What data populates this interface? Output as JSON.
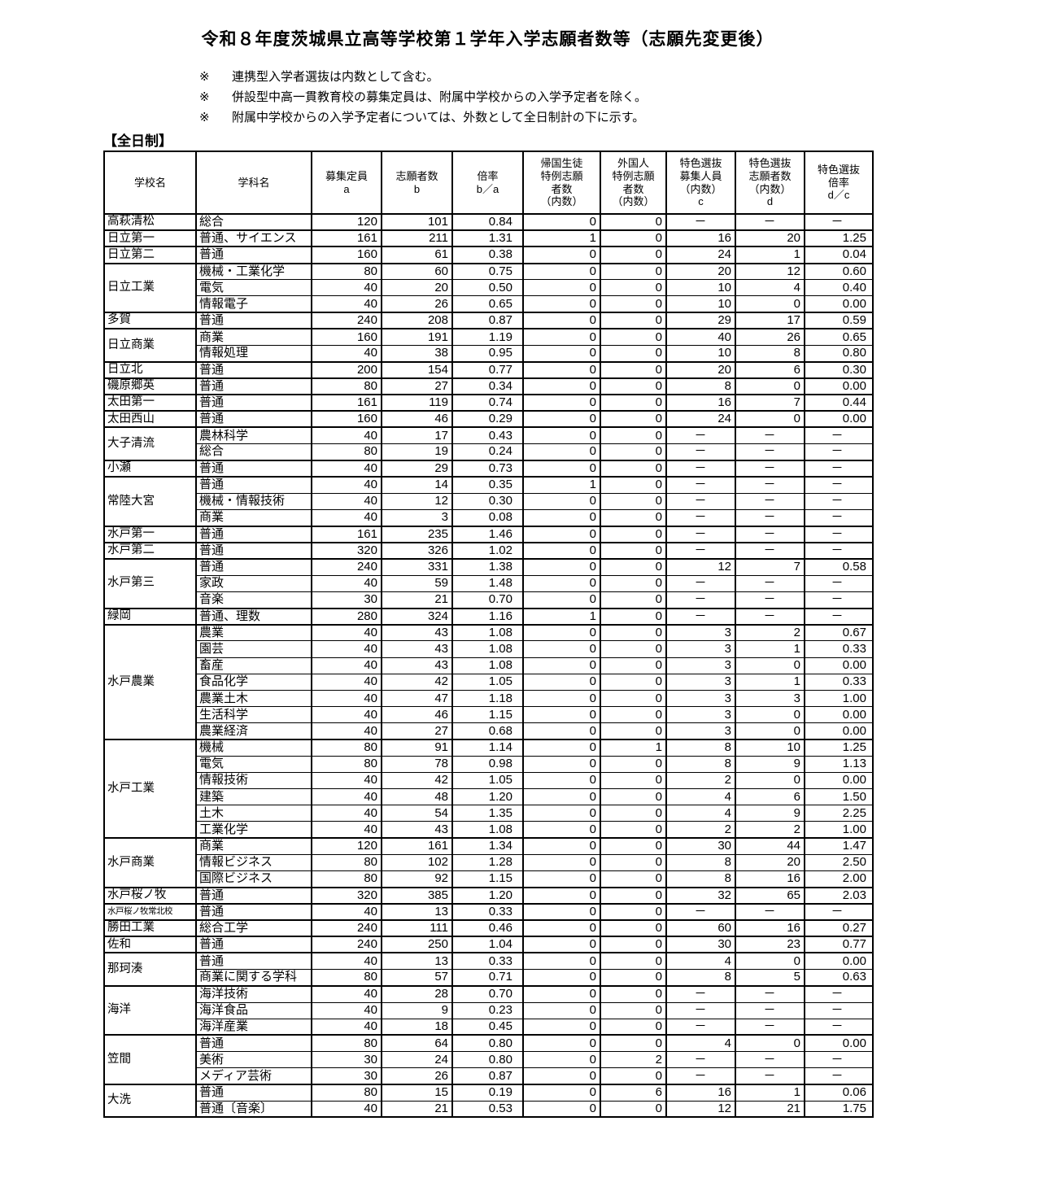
{
  "page": {
    "title": "令和８年度茨城県立高等学校第１学年入学志願者数等（志願先変更後）",
    "notes": [
      {
        "marker": "※",
        "text": "連携型入学者選抜は内数として含む。"
      },
      {
        "marker": "※",
        "text": "併設型中高一貫教育校の募集定員は、附属中学校からの入学予定者を除く。"
      },
      {
        "marker": "※",
        "text": "附属中学校からの入学予定者については、外数として全日制計の下に示す。"
      }
    ],
    "section_label": "【全日制】"
  },
  "colors": {
    "background": "#ffffff",
    "text": "#000000",
    "border": "#000000"
  },
  "table": {
    "headers": [
      {
        "label": "学校名"
      },
      {
        "label": "学科名"
      },
      {
        "label": "募集定員\na"
      },
      {
        "label": "志願者数\nb"
      },
      {
        "label": "倍率\nb／a"
      },
      {
        "label": "帰国生徒\n特例志願\n者数\n（内数）"
      },
      {
        "label": "外国人\n特例志願\n者数\n（内数）"
      },
      {
        "label": "特色選抜\n募集人員\n（内数）\nc"
      },
      {
        "label": "特色選抜\n志願者数\n（内数）\nd"
      },
      {
        "label": "特色選抜\n倍率\nd／c"
      }
    ],
    "schools": [
      {
        "name": "高萩清松",
        "rows": [
          [
            "総合",
            "120",
            "101",
            "0.84",
            "0",
            "0",
            "－",
            "－",
            "－"
          ]
        ]
      },
      {
        "name": "日立第一",
        "rows": [
          [
            "普通、サイエンス",
            "161",
            "211",
            "1.31",
            "1",
            "0",
            "16",
            "20",
            "1.25"
          ]
        ]
      },
      {
        "name": "日立第二",
        "rows": [
          [
            "普通",
            "160",
            "61",
            "0.38",
            "0",
            "0",
            "24",
            "1",
            "0.04"
          ]
        ]
      },
      {
        "name": "日立工業",
        "rows": [
          [
            "機械・工業化学",
            "80",
            "60",
            "0.75",
            "0",
            "0",
            "20",
            "12",
            "0.60"
          ],
          [
            "電気",
            "40",
            "20",
            "0.50",
            "0",
            "0",
            "10",
            "4",
            "0.40"
          ],
          [
            "情報電子",
            "40",
            "26",
            "0.65",
            "0",
            "0",
            "10",
            "0",
            "0.00"
          ]
        ]
      },
      {
        "name": "多賀",
        "rows": [
          [
            "普通",
            "240",
            "208",
            "0.87",
            "0",
            "0",
            "29",
            "17",
            "0.59"
          ]
        ]
      },
      {
        "name": "日立商業",
        "rows": [
          [
            "商業",
            "160",
            "191",
            "1.19",
            "0",
            "0",
            "40",
            "26",
            "0.65"
          ],
          [
            "情報処理",
            "40",
            "38",
            "0.95",
            "0",
            "0",
            "10",
            "8",
            "0.80"
          ]
        ]
      },
      {
        "name": "日立北",
        "rows": [
          [
            "普通",
            "200",
            "154",
            "0.77",
            "0",
            "0",
            "20",
            "6",
            "0.30"
          ]
        ]
      },
      {
        "name": "磯原郷英",
        "rows": [
          [
            "普通",
            "80",
            "27",
            "0.34",
            "0",
            "0",
            "8",
            "0",
            "0.00"
          ]
        ]
      },
      {
        "name": "太田第一",
        "rows": [
          [
            "普通",
            "161",
            "119",
            "0.74",
            "0",
            "0",
            "16",
            "7",
            "0.44"
          ]
        ]
      },
      {
        "name": "太田西山",
        "rows": [
          [
            "普通",
            "160",
            "46",
            "0.29",
            "0",
            "0",
            "24",
            "0",
            "0.00"
          ]
        ]
      },
      {
        "name": "大子清流",
        "rows": [
          [
            "農林科学",
            "40",
            "17",
            "0.43",
            "0",
            "0",
            "－",
            "－",
            "－"
          ],
          [
            "総合",
            "80",
            "19",
            "0.24",
            "0",
            "0",
            "－",
            "－",
            "－"
          ]
        ]
      },
      {
        "name": "小瀬",
        "rows": [
          [
            "普通",
            "40",
            "29",
            "0.73",
            "0",
            "0",
            "－",
            "－",
            "－"
          ]
        ]
      },
      {
        "name": "常陸大宮",
        "rows": [
          [
            "普通",
            "40",
            "14",
            "0.35",
            "1",
            "0",
            "－",
            "－",
            "－"
          ],
          [
            "機械・情報技術",
            "40",
            "12",
            "0.30",
            "0",
            "0",
            "－",
            "－",
            "－"
          ],
          [
            "商業",
            "40",
            "3",
            "0.08",
            "0",
            "0",
            "－",
            "－",
            "－"
          ]
        ]
      },
      {
        "name": "水戸第一",
        "rows": [
          [
            "普通",
            "161",
            "235",
            "1.46",
            "0",
            "0",
            "－",
            "－",
            "－"
          ]
        ]
      },
      {
        "name": "水戸第二",
        "rows": [
          [
            "普通",
            "320",
            "326",
            "1.02",
            "0",
            "0",
            "－",
            "－",
            "－"
          ]
        ]
      },
      {
        "name": "水戸第三",
        "rows": [
          [
            "普通",
            "240",
            "331",
            "1.38",
            "0",
            "0",
            "12",
            "7",
            "0.58"
          ],
          [
            "家政",
            "40",
            "59",
            "1.48",
            "0",
            "0",
            "－",
            "－",
            "－"
          ],
          [
            "音楽",
            "30",
            "21",
            "0.70",
            "0",
            "0",
            "－",
            "－",
            "－"
          ]
        ]
      },
      {
        "name": "緑岡",
        "rows": [
          [
            "普通、理数",
            "280",
            "324",
            "1.16",
            "1",
            "0",
            "－",
            "－",
            "－"
          ]
        ]
      },
      {
        "name": "水戸農業",
        "rows": [
          [
            "農業",
            "40",
            "43",
            "1.08",
            "0",
            "0",
            "3",
            "2",
            "0.67"
          ],
          [
            "園芸",
            "40",
            "43",
            "1.08",
            "0",
            "0",
            "3",
            "1",
            "0.33"
          ],
          [
            "畜産",
            "40",
            "43",
            "1.08",
            "0",
            "0",
            "3",
            "0",
            "0.00"
          ],
          [
            "食品化学",
            "40",
            "42",
            "1.05",
            "0",
            "0",
            "3",
            "1",
            "0.33"
          ],
          [
            "農業土木",
            "40",
            "47",
            "1.18",
            "0",
            "0",
            "3",
            "3",
            "1.00"
          ],
          [
            "生活科学",
            "40",
            "46",
            "1.15",
            "0",
            "0",
            "3",
            "0",
            "0.00"
          ],
          [
            "農業経済",
            "40",
            "27",
            "0.68",
            "0",
            "0",
            "3",
            "0",
            "0.00"
          ]
        ]
      },
      {
        "name": "水戸工業",
        "rows": [
          [
            "機械",
            "80",
            "91",
            "1.14",
            "0",
            "1",
            "8",
            "10",
            "1.25"
          ],
          [
            "電気",
            "80",
            "78",
            "0.98",
            "0",
            "0",
            "8",
            "9",
            "1.13"
          ],
          [
            "情報技術",
            "40",
            "42",
            "1.05",
            "0",
            "0",
            "2",
            "0",
            "0.00"
          ],
          [
            "建築",
            "40",
            "48",
            "1.20",
            "0",
            "0",
            "4",
            "6",
            "1.50"
          ],
          [
            "土木",
            "40",
            "54",
            "1.35",
            "0",
            "0",
            "4",
            "9",
            "2.25"
          ],
          [
            "工業化学",
            "40",
            "43",
            "1.08",
            "0",
            "0",
            "2",
            "2",
            "1.00"
          ]
        ]
      },
      {
        "name": "水戸商業",
        "rows": [
          [
            "商業",
            "120",
            "161",
            "1.34",
            "0",
            "0",
            "30",
            "44",
            "1.47"
          ],
          [
            "情報ビジネス",
            "80",
            "102",
            "1.28",
            "0",
            "0",
            "8",
            "20",
            "2.50"
          ],
          [
            "国際ビジネス",
            "80",
            "92",
            "1.15",
            "0",
            "0",
            "8",
            "16",
            "2.00"
          ]
        ]
      },
      {
        "name": "水戸桜ノ牧",
        "rows": [
          [
            "普通",
            "320",
            "385",
            "1.20",
            "0",
            "0",
            "32",
            "65",
            "2.03"
          ]
        ]
      },
      {
        "name": "水戸桜ノ牧常北校",
        "small": true,
        "rows": [
          [
            "普通",
            "40",
            "13",
            "0.33",
            "0",
            "0",
            "－",
            "－",
            "－"
          ]
        ]
      },
      {
        "name": "勝田工業",
        "rows": [
          [
            "総合工学",
            "240",
            "111",
            "0.46",
            "0",
            "0",
            "60",
            "16",
            "0.27"
          ]
        ]
      },
      {
        "name": "佐和",
        "rows": [
          [
            "普通",
            "240",
            "250",
            "1.04",
            "0",
            "0",
            "30",
            "23",
            "0.77"
          ]
        ]
      },
      {
        "name": "那珂湊",
        "rows": [
          [
            "普通",
            "40",
            "13",
            "0.33",
            "0",
            "0",
            "4",
            "0",
            "0.00"
          ],
          [
            "商業に関する学科",
            "80",
            "57",
            "0.71",
            "0",
            "0",
            "8",
            "5",
            "0.63"
          ]
        ]
      },
      {
        "name": "海洋",
        "rows": [
          [
            "海洋技術",
            "40",
            "28",
            "0.70",
            "0",
            "0",
            "－",
            "－",
            "－"
          ],
          [
            "海洋食品",
            "40",
            "9",
            "0.23",
            "0",
            "0",
            "－",
            "－",
            "－"
          ],
          [
            "海洋産業",
            "40",
            "18",
            "0.45",
            "0",
            "0",
            "－",
            "－",
            "－"
          ]
        ]
      },
      {
        "name": "笠間",
        "rows": [
          [
            "普通",
            "80",
            "64",
            "0.80",
            "0",
            "0",
            "4",
            "0",
            "0.00"
          ],
          [
            "美術",
            "30",
            "24",
            "0.80",
            "0",
            "2",
            "－",
            "－",
            "－"
          ],
          [
            "メディア芸術",
            "30",
            "26",
            "0.87",
            "0",
            "0",
            "－",
            "－",
            "－"
          ]
        ]
      },
      {
        "name": "大洗",
        "rows": [
          [
            "普通",
            "80",
            "15",
            "0.19",
            "0",
            "6",
            "16",
            "1",
            "0.06"
          ],
          [
            "普通〔音楽〕",
            "40",
            "21",
            "0.53",
            "0",
            "0",
            "12",
            "21",
            "1.75"
          ]
        ]
      }
    ]
  }
}
